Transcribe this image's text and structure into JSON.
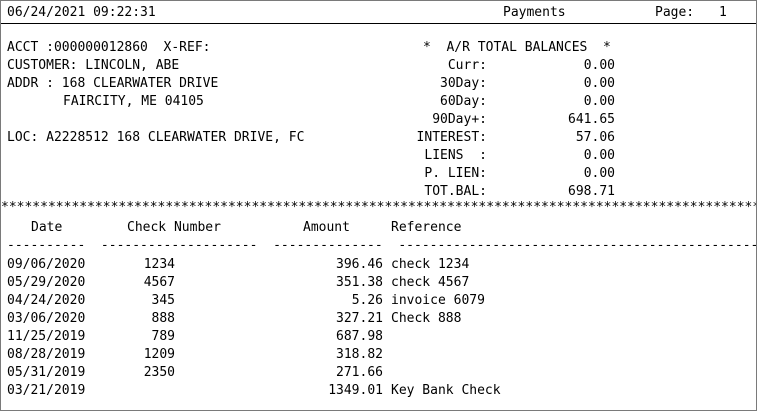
{
  "header": {
    "datetime": "06/24/2021 09:22:31",
    "title": "Payments",
    "page_label": "Page:",
    "page_number": "1"
  },
  "account": {
    "acct_line": "ACCT :000000012860  X-REF:",
    "customer_line": "CUSTOMER: LINCOLN, ABE",
    "addr_line1": "ADDR : 168 CLEARWATER DRIVE",
    "addr_line2": "FAIRCITY, ME 04105",
    "loc_line": "LOC: A2228512 168 CLEARWATER DRIVE, FC"
  },
  "balances": {
    "heading": "*  A/R TOTAL BALANCES  *",
    "rows": [
      {
        "label": "Curr:",
        "value": "0.00"
      },
      {
        "label": "30Day:",
        "value": "0.00"
      },
      {
        "label": "60Day:",
        "value": "0.00"
      },
      {
        "label": "90Day+:",
        "value": "641.65"
      },
      {
        "label": "INTEREST:",
        "value": "57.06"
      },
      {
        "label": "LIENS  :",
        "value": "0.00"
      },
      {
        "label": "P. LIEN:",
        "value": "0.00"
      },
      {
        "label": "TOT.BAL:",
        "value": "698.71"
      }
    ]
  },
  "separator_stars": "************************************************************************************************************************",
  "table": {
    "headers": {
      "date": "Date",
      "check": "Check Number",
      "amount": "Amount",
      "reference": "Reference"
    },
    "underline": "----------  --------------------  --------------  ------------------------------------------------------------",
    "rows": [
      {
        "date": "09/06/2020",
        "check": "1234",
        "amount": "396.46",
        "reference": "check 1234"
      },
      {
        "date": "05/29/2020",
        "check": "4567",
        "amount": "351.38",
        "reference": "check 4567"
      },
      {
        "date": "04/24/2020",
        "check": "345",
        "amount": "5.26",
        "reference": "invoice 6079"
      },
      {
        "date": "03/06/2020",
        "check": "888",
        "amount": "327.21",
        "reference": "Check 888"
      },
      {
        "date": "11/25/2019",
        "check": "789",
        "amount": "687.98",
        "reference": ""
      },
      {
        "date": "08/28/2019",
        "check": "1209",
        "amount": "318.82",
        "reference": ""
      },
      {
        "date": "05/31/2019",
        "check": "2350",
        "amount": "271.66",
        "reference": ""
      },
      {
        "date": "03/21/2019",
        "check": "",
        "amount": "1349.01",
        "reference": "Key Bank Check"
      }
    ]
  }
}
